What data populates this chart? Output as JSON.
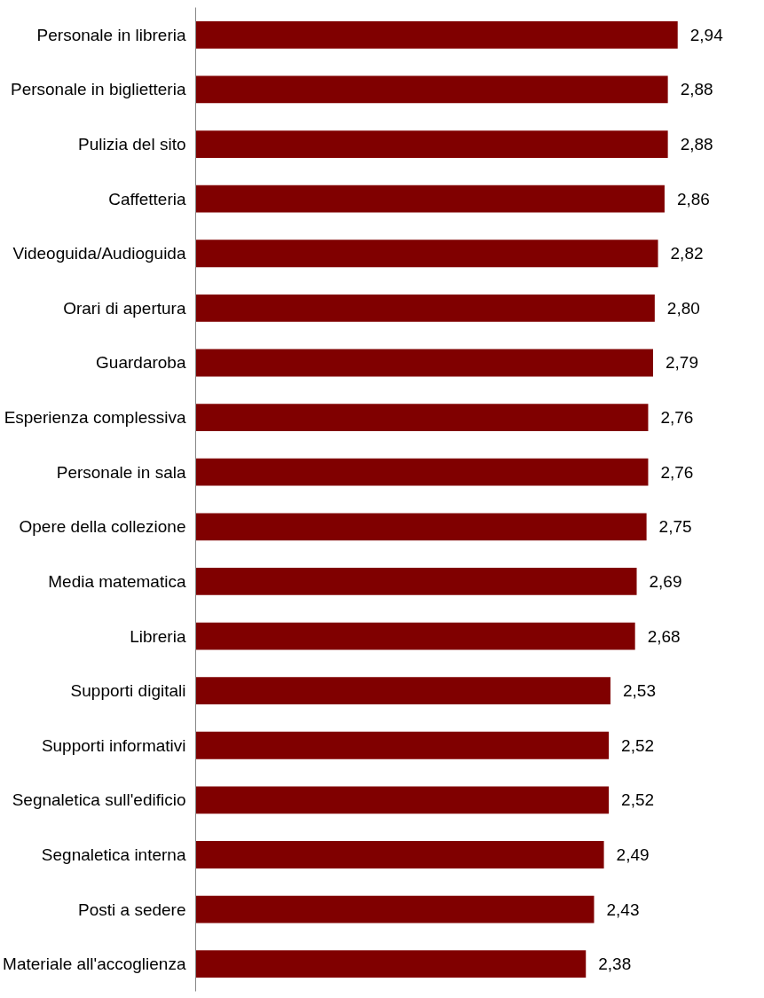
{
  "chart_data": {
    "type": "bar",
    "orientation": "horizontal",
    "categories": [
      "Personale in libreria",
      "Personale in biglietteria",
      "Pulizia del sito",
      "Caffetteria",
      "Videoguida/Audioguida",
      "Orari di apertura",
      "Guardaroba",
      "Esperienza complessiva",
      "Personale in sala",
      "Opere della collezione",
      "Media matematica",
      "Libreria",
      "Supporti digitali",
      "Supporti informativi",
      "Segnaletica sull'edificio",
      "Segnaletica interna",
      "Posti a sedere",
      "Materiale all'accoglienza"
    ],
    "values": [
      2.94,
      2.88,
      2.88,
      2.86,
      2.82,
      2.8,
      2.79,
      2.76,
      2.76,
      2.75,
      2.69,
      2.68,
      2.53,
      2.52,
      2.52,
      2.49,
      2.43,
      2.38
    ],
    "value_labels": [
      "2,94",
      "2,88",
      "2,88",
      "2,86",
      "2,82",
      "2,80",
      "2,79",
      "2,76",
      "2,76",
      "2,75",
      "2,69",
      "2,68",
      "2,53",
      "2,52",
      "2,52",
      "2,49",
      "2,43",
      "2,38"
    ],
    "color": "#800000",
    "grid": false
  }
}
